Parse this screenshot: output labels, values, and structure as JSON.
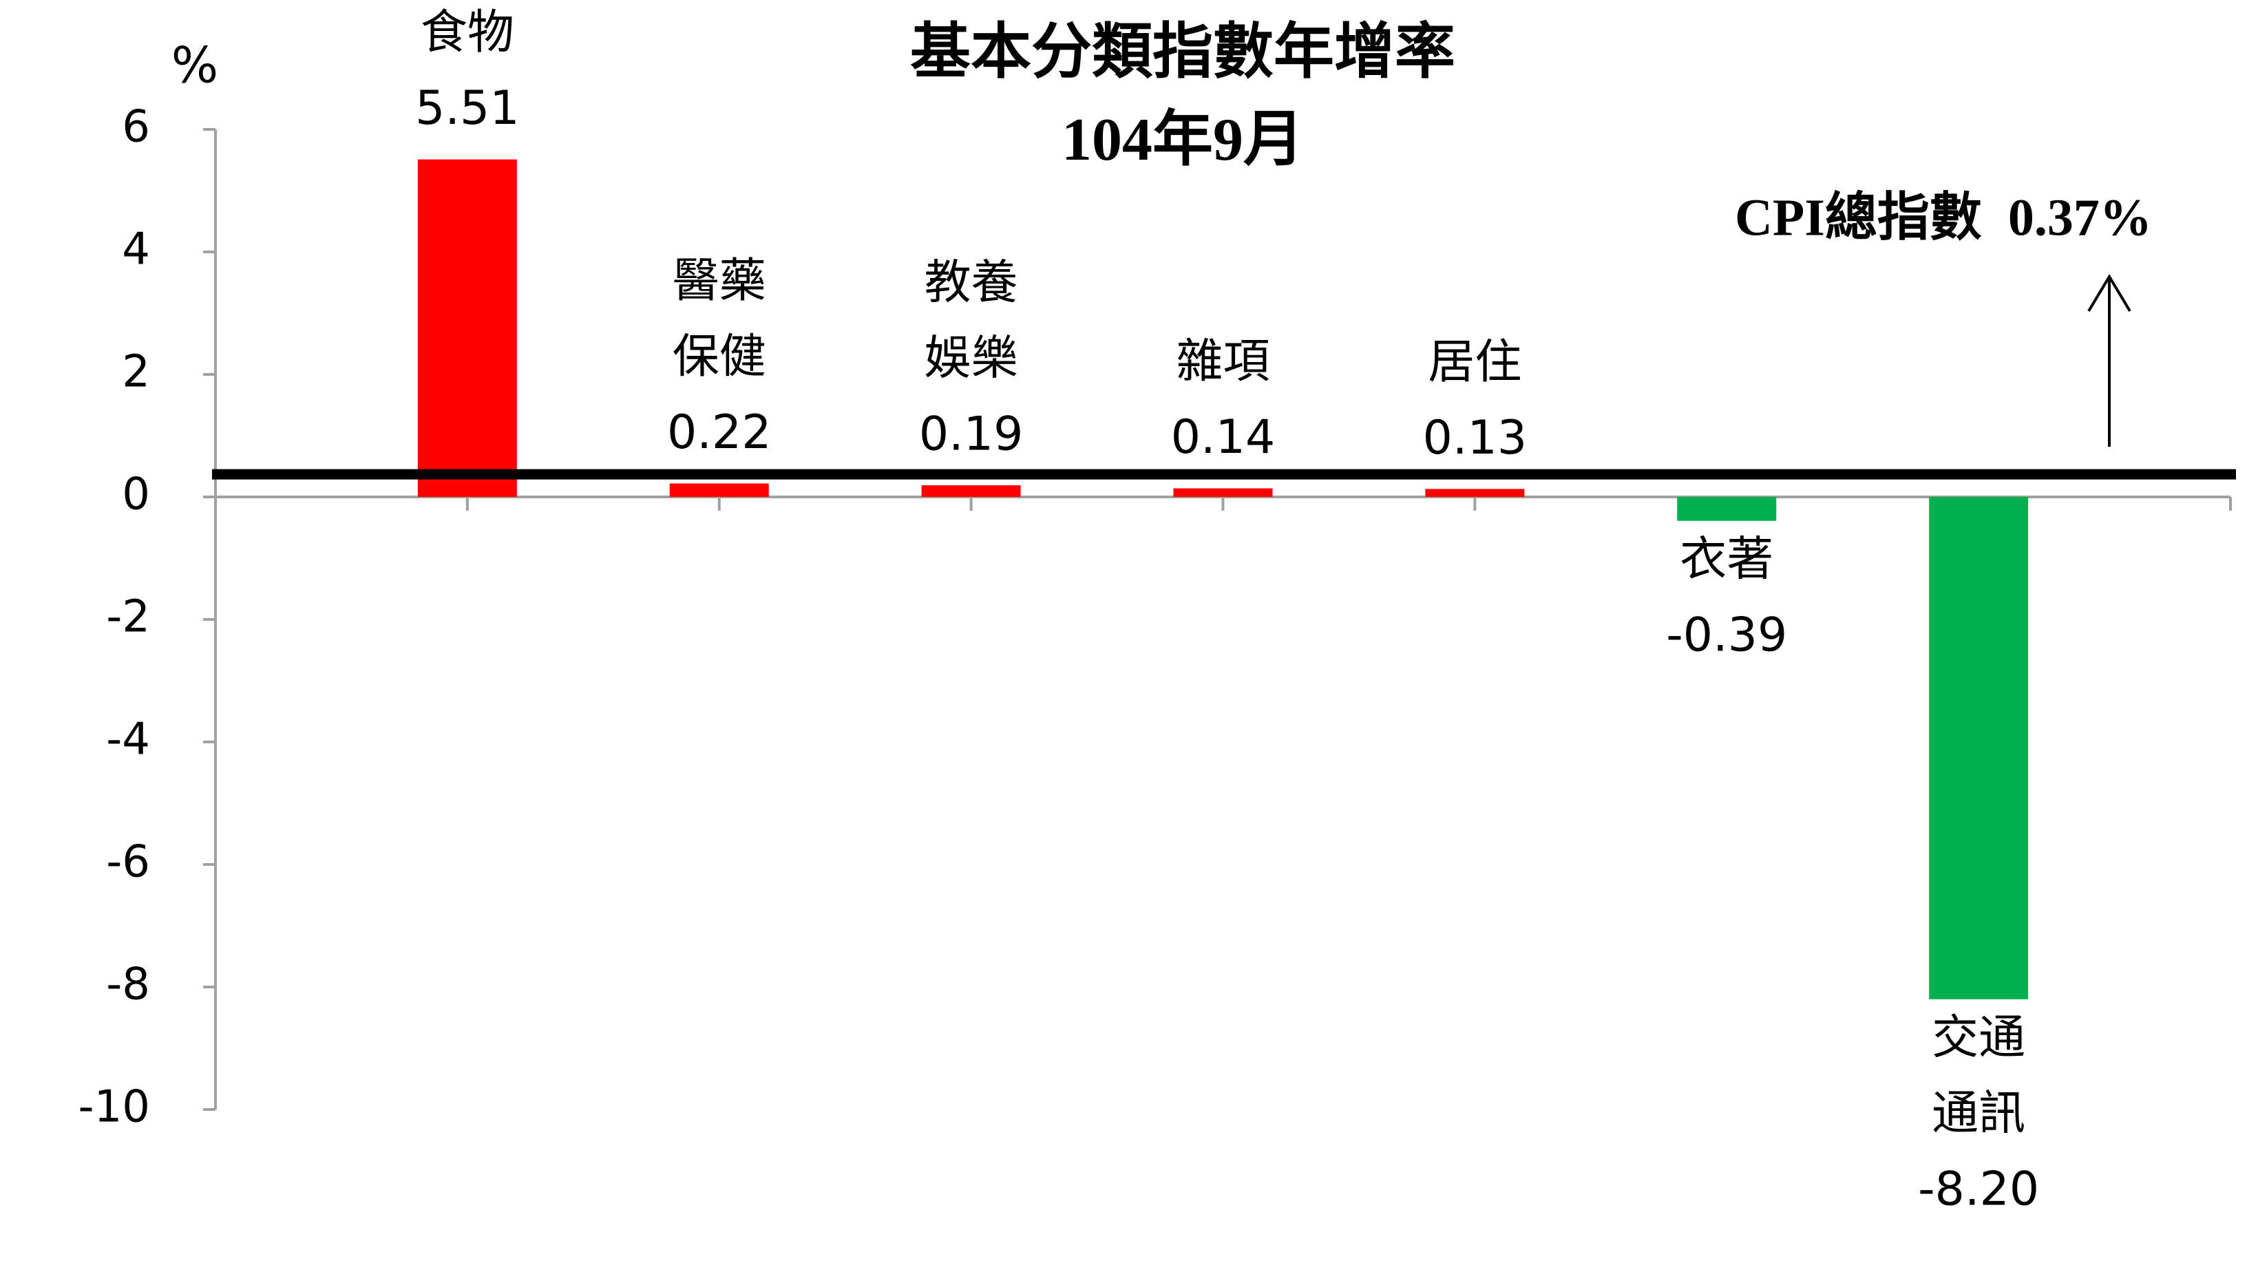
{
  "chart_data": {
    "type": "bar",
    "title": "基本分類指數年增率",
    "subtitle": "104年9月",
    "y_label": "%",
    "categories": [
      [
        "食物"
      ],
      [
        "醫藥",
        "保健"
      ],
      [
        "教養",
        "娛樂"
      ],
      [
        "雜項"
      ],
      [
        "居住"
      ],
      [
        "衣著"
      ],
      [
        "交通",
        "通訊"
      ]
    ],
    "values": [
      5.51,
      0.22,
      0.19,
      0.14,
      0.13,
      -0.39,
      -8.2
    ],
    "value_labels": [
      "5.51",
      "0.22",
      "0.19",
      "0.14",
      "0.13",
      "-0.39",
      "-8.20"
    ],
    "colors": [
      "#ff0000",
      "#ff0000",
      "#ff0000",
      "#ff0000",
      "#ff0000",
      "#00b050",
      "#00b050"
    ],
    "ylim": [
      -10,
      6
    ],
    "yticks": [
      6,
      4,
      2,
      0,
      -2,
      -4,
      -6,
      -8,
      -10
    ],
    "reference_line": {
      "value": 0.37,
      "label": "CPI總指數  0.37%",
      "color": "#000000"
    }
  }
}
